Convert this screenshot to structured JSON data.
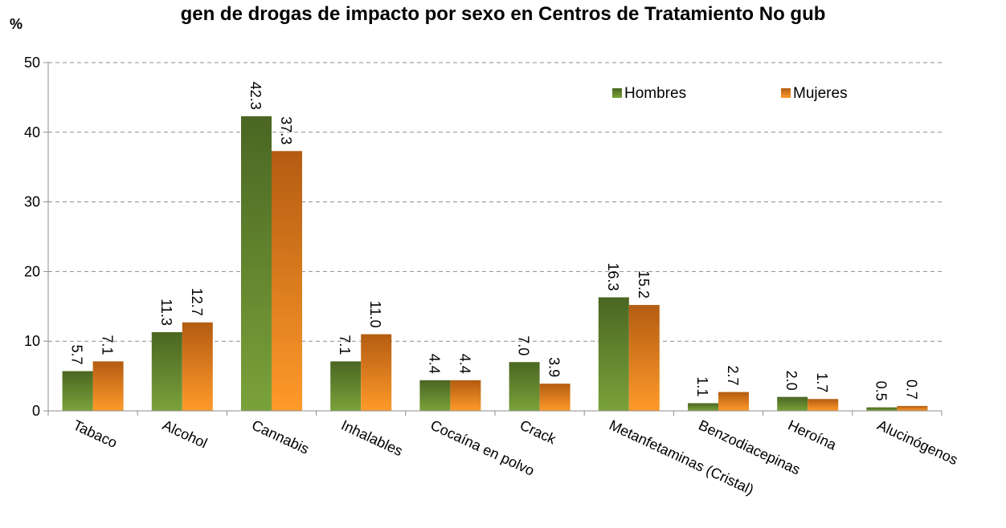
{
  "chart_data": {
    "type": "bar",
    "title": "gen de drogas de impacto por sexo en Centros de Tratamiento No gub",
    "ylabel": "%",
    "xlabel": "",
    "ylim": [
      0,
      50
    ],
    "yticks": [
      "0",
      "10",
      "20",
      "30",
      "40",
      "50"
    ],
    "grid": true,
    "legend_position": "top-right",
    "categories": [
      "Tabaco",
      "Alcohol",
      "Cannabis",
      "Inhalables",
      "Cocaína en polvo",
      "Crack",
      "Metanfetaminas (Cristal)",
      "Benzodiacepinas",
      "Heroína",
      "Alucinógenos"
    ],
    "series": [
      {
        "name": "Hombres",
        "values": [
          5.7,
          11.3,
          42.3,
          7.1,
          4.4,
          7.0,
          16.3,
          1.1,
          2.0,
          0.5
        ],
        "labels": [
          "5.7",
          "11.3",
          "42.3",
          "7.1",
          "4.4",
          "7.0",
          "16.3",
          "1.1",
          "2.0",
          "0.5"
        ],
        "color_top": "#4a6622",
        "color_bottom": "#7aa23a"
      },
      {
        "name": "Mujeres",
        "values": [
          7.1,
          12.7,
          37.3,
          11.0,
          4.4,
          3.9,
          15.2,
          2.7,
          1.7,
          0.7
        ],
        "labels": [
          "7.1",
          "12.7",
          "37.3",
          "11.0",
          "4.4",
          "3.9",
          "15.2",
          "2.7",
          "1.7",
          "0.7"
        ],
        "color_top": "#b35c12",
        "color_bottom": "#ff9a2a"
      }
    ]
  }
}
